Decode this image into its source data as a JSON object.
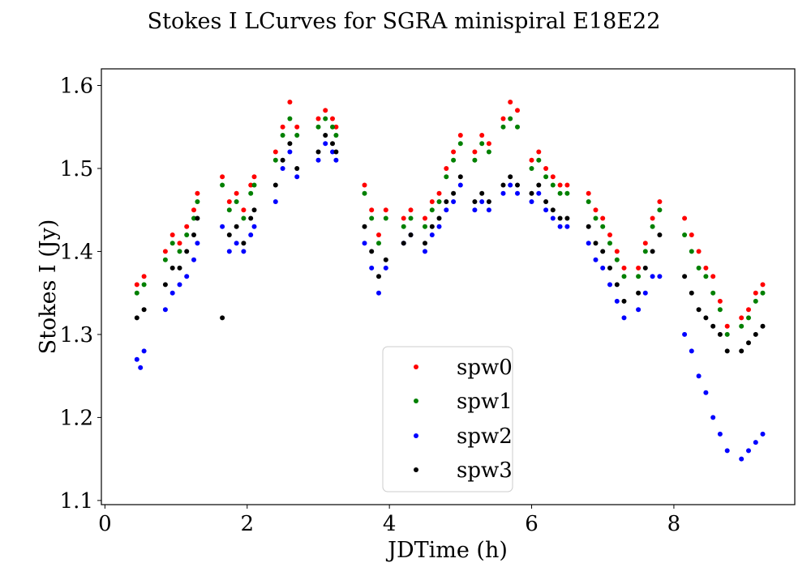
{
  "chart_data": {
    "type": "scatter",
    "title": "Stokes I LCurves for SGRA minispiral E18E22",
    "xlabel": "JDTime (h)",
    "ylabel": "Stokes I (Jy)",
    "xlim": [
      -0.05,
      9.7
    ],
    "ylim": [
      1.095,
      1.62
    ],
    "xticks": [
      0,
      2,
      4,
      6,
      8
    ],
    "xtick_labels": [
      "0",
      "2",
      "4",
      "6",
      "8"
    ],
    "yticks": [
      1.1,
      1.2,
      1.3,
      1.4,
      1.5,
      1.6
    ],
    "ytick_labels": [
      "1.1",
      "1.2",
      "1.3",
      "1.4",
      "1.5",
      "1.6"
    ],
    "legend_position": "lower-center",
    "series": [
      {
        "name": "spw0",
        "color": "#ff0000",
        "points": [
          [
            0.45,
            1.36
          ],
          [
            0.55,
            1.37
          ],
          [
            0.85,
            1.4
          ],
          [
            0.95,
            1.42
          ],
          [
            1.05,
            1.41
          ],
          [
            1.15,
            1.43
          ],
          [
            1.25,
            1.45
          ],
          [
            1.3,
            1.47
          ],
          [
            1.65,
            1.49
          ],
          [
            1.75,
            1.46
          ],
          [
            1.85,
            1.47
          ],
          [
            1.95,
            1.45
          ],
          [
            2.05,
            1.48
          ],
          [
            2.1,
            1.49
          ],
          [
            2.4,
            1.52
          ],
          [
            2.5,
            1.55
          ],
          [
            2.6,
            1.58
          ],
          [
            2.7,
            1.55
          ],
          [
            3.0,
            1.56
          ],
          [
            3.1,
            1.57
          ],
          [
            3.2,
            1.56
          ],
          [
            3.25,
            1.55
          ],
          [
            3.65,
            1.48
          ],
          [
            3.75,
            1.45
          ],
          [
            3.85,
            1.42
          ],
          [
            3.95,
            1.45
          ],
          [
            4.2,
            1.44
          ],
          [
            4.3,
            1.45
          ],
          [
            4.5,
            1.44
          ],
          [
            4.6,
            1.46
          ],
          [
            4.7,
            1.47
          ],
          [
            4.8,
            1.5
          ],
          [
            4.9,
            1.52
          ],
          [
            5.0,
            1.54
          ],
          [
            5.2,
            1.52
          ],
          [
            5.3,
            1.54
          ],
          [
            5.4,
            1.53
          ],
          [
            5.6,
            1.56
          ],
          [
            5.7,
            1.58
          ],
          [
            5.8,
            1.57
          ],
          [
            6.0,
            1.51
          ],
          [
            6.1,
            1.52
          ],
          [
            6.2,
            1.5
          ],
          [
            6.3,
            1.49
          ],
          [
            6.4,
            1.48
          ],
          [
            6.5,
            1.48
          ],
          [
            6.8,
            1.47
          ],
          [
            6.9,
            1.45
          ],
          [
            7.0,
            1.44
          ],
          [
            7.1,
            1.42
          ],
          [
            7.2,
            1.4
          ],
          [
            7.3,
            1.38
          ],
          [
            7.5,
            1.38
          ],
          [
            7.6,
            1.41
          ],
          [
            7.7,
            1.44
          ],
          [
            7.8,
            1.46
          ],
          [
            8.15,
            1.44
          ],
          [
            8.25,
            1.42
          ],
          [
            8.35,
            1.4
          ],
          [
            8.45,
            1.38
          ],
          [
            8.55,
            1.37
          ],
          [
            8.65,
            1.34
          ],
          [
            8.75,
            1.31
          ],
          [
            8.95,
            1.32
          ],
          [
            9.05,
            1.33
          ],
          [
            9.15,
            1.35
          ],
          [
            9.25,
            1.36
          ]
        ]
      },
      {
        "name": "spw1",
        "color": "#008000",
        "points": [
          [
            0.45,
            1.35
          ],
          [
            0.55,
            1.36
          ],
          [
            0.85,
            1.39
          ],
          [
            0.95,
            1.41
          ],
          [
            1.05,
            1.4
          ],
          [
            1.15,
            1.42
          ],
          [
            1.25,
            1.44
          ],
          [
            1.3,
            1.46
          ],
          [
            1.65,
            1.48
          ],
          [
            1.75,
            1.45
          ],
          [
            1.85,
            1.46
          ],
          [
            1.95,
            1.44
          ],
          [
            2.05,
            1.47
          ],
          [
            2.1,
            1.48
          ],
          [
            2.4,
            1.51
          ],
          [
            2.5,
            1.54
          ],
          [
            2.6,
            1.56
          ],
          [
            2.7,
            1.54
          ],
          [
            3.0,
            1.55
          ],
          [
            3.1,
            1.56
          ],
          [
            3.2,
            1.55
          ],
          [
            3.25,
            1.54
          ],
          [
            3.65,
            1.47
          ],
          [
            3.75,
            1.44
          ],
          [
            3.85,
            1.41
          ],
          [
            3.95,
            1.44
          ],
          [
            4.2,
            1.43
          ],
          [
            4.3,
            1.44
          ],
          [
            4.5,
            1.43
          ],
          [
            4.6,
            1.45
          ],
          [
            4.7,
            1.46
          ],
          [
            4.8,
            1.49
          ],
          [
            4.9,
            1.51
          ],
          [
            5.0,
            1.53
          ],
          [
            5.2,
            1.51
          ],
          [
            5.3,
            1.53
          ],
          [
            5.4,
            1.52
          ],
          [
            5.6,
            1.55
          ],
          [
            5.7,
            1.56
          ],
          [
            5.8,
            1.55
          ],
          [
            6.0,
            1.5
          ],
          [
            6.1,
            1.51
          ],
          [
            6.2,
            1.49
          ],
          [
            6.3,
            1.48
          ],
          [
            6.4,
            1.47
          ],
          [
            6.5,
            1.47
          ],
          [
            6.8,
            1.46
          ],
          [
            6.9,
            1.44
          ],
          [
            7.0,
            1.43
          ],
          [
            7.1,
            1.41
          ],
          [
            7.2,
            1.39
          ],
          [
            7.3,
            1.37
          ],
          [
            7.5,
            1.37
          ],
          [
            7.6,
            1.4
          ],
          [
            7.7,
            1.43
          ],
          [
            7.8,
            1.45
          ],
          [
            8.15,
            1.42
          ],
          [
            8.25,
            1.4
          ],
          [
            8.35,
            1.38
          ],
          [
            8.45,
            1.37
          ],
          [
            8.55,
            1.35
          ],
          [
            8.65,
            1.33
          ],
          [
            8.75,
            1.3
          ],
          [
            8.95,
            1.31
          ],
          [
            9.05,
            1.32
          ],
          [
            9.15,
            1.34
          ],
          [
            9.25,
            1.35
          ]
        ]
      },
      {
        "name": "spw2",
        "color": "#0000ff",
        "points": [
          [
            0.45,
            1.27
          ],
          [
            0.5,
            1.26
          ],
          [
            0.55,
            1.28
          ],
          [
            0.85,
            1.33
          ],
          [
            0.95,
            1.35
          ],
          [
            1.05,
            1.36
          ],
          [
            1.15,
            1.37
          ],
          [
            1.25,
            1.39
          ],
          [
            1.3,
            1.41
          ],
          [
            1.65,
            1.43
          ],
          [
            1.75,
            1.4
          ],
          [
            1.85,
            1.41
          ],
          [
            1.95,
            1.4
          ],
          [
            2.05,
            1.42
          ],
          [
            2.1,
            1.43
          ],
          [
            2.4,
            1.46
          ],
          [
            2.5,
            1.5
          ],
          [
            2.6,
            1.52
          ],
          [
            2.7,
            1.49
          ],
          [
            3.0,
            1.51
          ],
          [
            3.1,
            1.53
          ],
          [
            3.2,
            1.52
          ],
          [
            3.25,
            1.51
          ],
          [
            3.65,
            1.41
          ],
          [
            3.75,
            1.38
          ],
          [
            3.85,
            1.35
          ],
          [
            3.95,
            1.38
          ],
          [
            4.2,
            1.41
          ],
          [
            4.3,
            1.42
          ],
          [
            4.5,
            1.4
          ],
          [
            4.6,
            1.42
          ],
          [
            4.7,
            1.43
          ],
          [
            4.8,
            1.45
          ],
          [
            4.9,
            1.46
          ],
          [
            5.0,
            1.48
          ],
          [
            5.2,
            1.45
          ],
          [
            5.3,
            1.46
          ],
          [
            5.4,
            1.45
          ],
          [
            5.6,
            1.47
          ],
          [
            5.7,
            1.48
          ],
          [
            5.8,
            1.47
          ],
          [
            6.0,
            1.46
          ],
          [
            6.1,
            1.47
          ],
          [
            6.2,
            1.45
          ],
          [
            6.3,
            1.44
          ],
          [
            6.4,
            1.43
          ],
          [
            6.5,
            1.43
          ],
          [
            6.8,
            1.41
          ],
          [
            6.9,
            1.39
          ],
          [
            7.0,
            1.38
          ],
          [
            7.1,
            1.36
          ],
          [
            7.2,
            1.34
          ],
          [
            7.3,
            1.32
          ],
          [
            7.5,
            1.33
          ],
          [
            7.6,
            1.35
          ],
          [
            7.7,
            1.37
          ],
          [
            7.8,
            1.37
          ],
          [
            8.15,
            1.3
          ],
          [
            8.25,
            1.28
          ],
          [
            8.35,
            1.25
          ],
          [
            8.45,
            1.23
          ],
          [
            8.55,
            1.2
          ],
          [
            8.65,
            1.18
          ],
          [
            8.75,
            1.16
          ],
          [
            8.95,
            1.15
          ],
          [
            9.05,
            1.16
          ],
          [
            9.15,
            1.17
          ],
          [
            9.25,
            1.18
          ]
        ]
      },
      {
        "name": "spw3",
        "color": "#000000",
        "points": [
          [
            0.45,
            1.32
          ],
          [
            0.55,
            1.33
          ],
          [
            0.85,
            1.36
          ],
          [
            0.95,
            1.38
          ],
          [
            1.05,
            1.38
          ],
          [
            1.15,
            1.4
          ],
          [
            1.25,
            1.42
          ],
          [
            1.3,
            1.44
          ],
          [
            1.65,
            1.32
          ],
          [
            1.75,
            1.42
          ],
          [
            1.85,
            1.43
          ],
          [
            1.95,
            1.41
          ],
          [
            2.05,
            1.44
          ],
          [
            2.1,
            1.45
          ],
          [
            2.4,
            1.48
          ],
          [
            2.5,
            1.51
          ],
          [
            2.6,
            1.53
          ],
          [
            2.7,
            1.5
          ],
          [
            3.0,
            1.52
          ],
          [
            3.1,
            1.54
          ],
          [
            3.2,
            1.53
          ],
          [
            3.25,
            1.52
          ],
          [
            3.65,
            1.43
          ],
          [
            3.75,
            1.4
          ],
          [
            3.85,
            1.37
          ],
          [
            3.95,
            1.39
          ],
          [
            4.2,
            1.41
          ],
          [
            4.3,
            1.42
          ],
          [
            4.5,
            1.41
          ],
          [
            4.6,
            1.43
          ],
          [
            4.7,
            1.44
          ],
          [
            4.8,
            1.46
          ],
          [
            4.9,
            1.47
          ],
          [
            5.0,
            1.49
          ],
          [
            5.2,
            1.46
          ],
          [
            5.3,
            1.47
          ],
          [
            5.4,
            1.46
          ],
          [
            5.6,
            1.48
          ],
          [
            5.7,
            1.49
          ],
          [
            5.8,
            1.48
          ],
          [
            6.0,
            1.47
          ],
          [
            6.1,
            1.48
          ],
          [
            6.2,
            1.46
          ],
          [
            6.3,
            1.45
          ],
          [
            6.4,
            1.44
          ],
          [
            6.5,
            1.44
          ],
          [
            6.8,
            1.43
          ],
          [
            6.9,
            1.41
          ],
          [
            7.0,
            1.4
          ],
          [
            7.1,
            1.38
          ],
          [
            7.2,
            1.36
          ],
          [
            7.3,
            1.34
          ],
          [
            7.5,
            1.35
          ],
          [
            7.6,
            1.38
          ],
          [
            7.7,
            1.4
          ],
          [
            7.8,
            1.42
          ],
          [
            8.15,
            1.37
          ],
          [
            8.25,
            1.35
          ],
          [
            8.35,
            1.33
          ],
          [
            8.45,
            1.32
          ],
          [
            8.55,
            1.31
          ],
          [
            8.65,
            1.3
          ],
          [
            8.75,
            1.28
          ],
          [
            8.95,
            1.28
          ],
          [
            9.05,
            1.29
          ],
          [
            9.15,
            1.3
          ],
          [
            9.25,
            1.31
          ]
        ]
      }
    ]
  }
}
